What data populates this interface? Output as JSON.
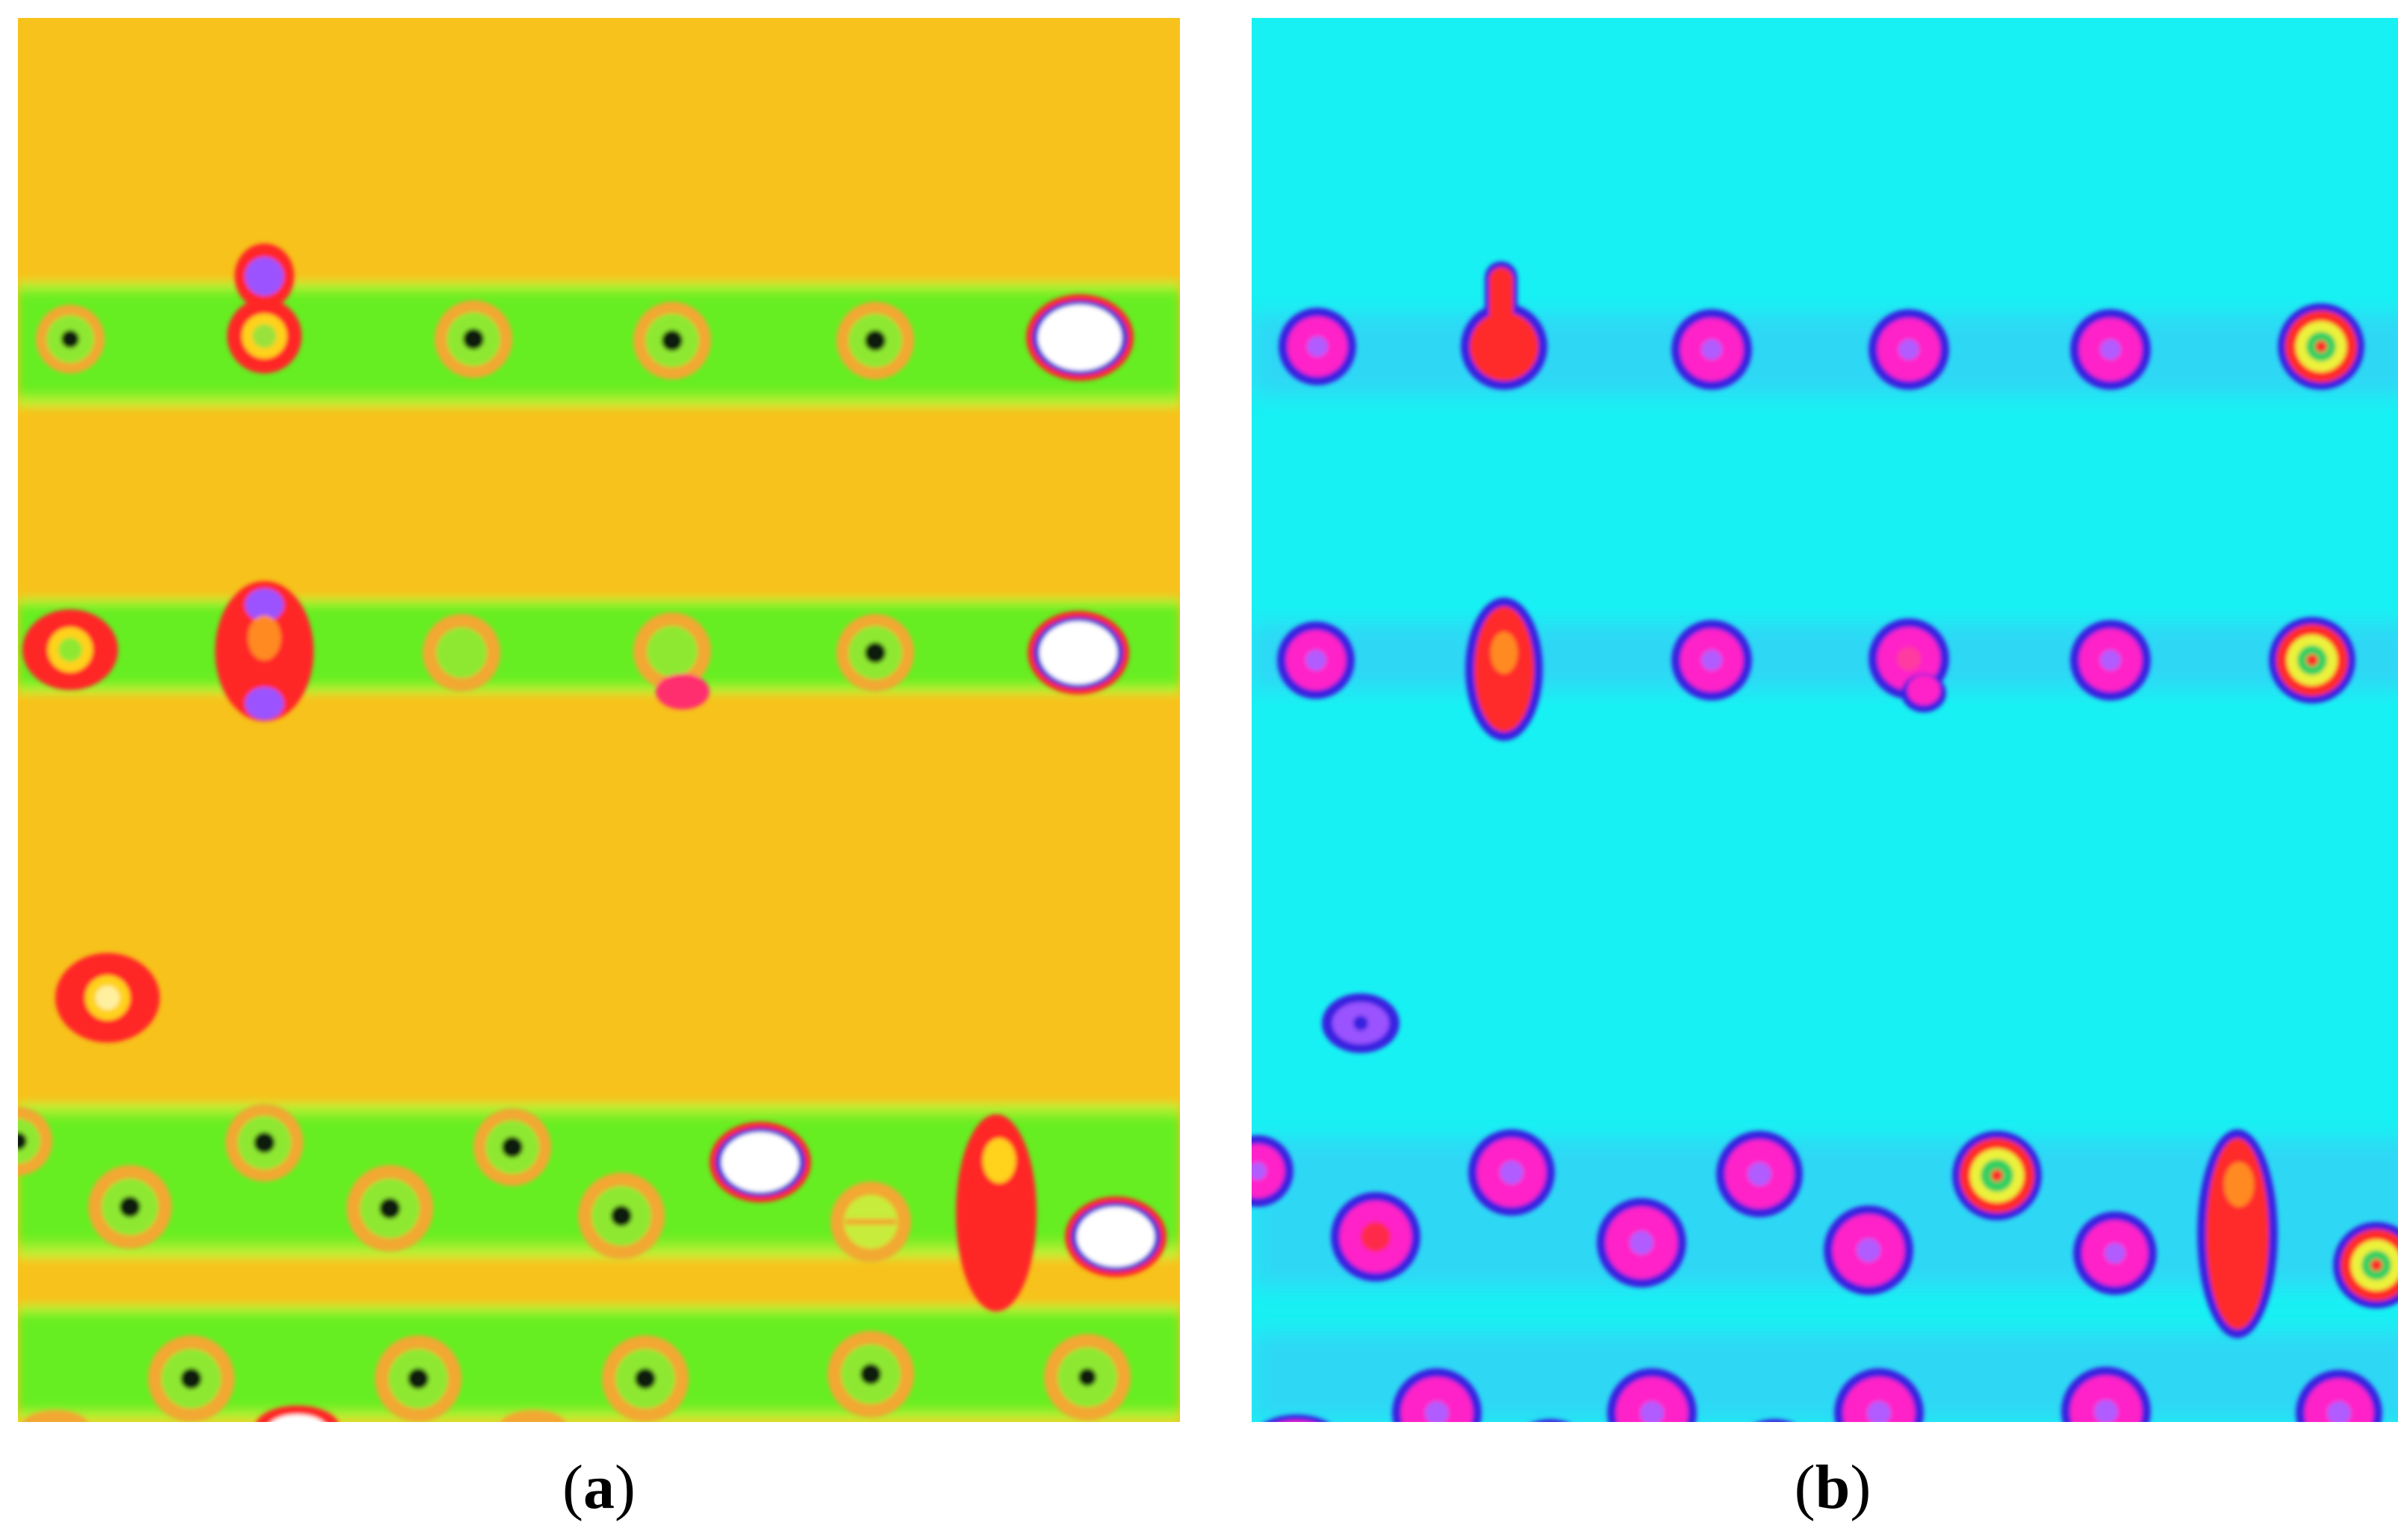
{
  "panels": [
    {
      "id": "a",
      "caption": {
        "open": "(",
        "letter": "a",
        "close": ")"
      },
      "colors": {
        "background": "#f7c21b",
        "band": "#66ee22",
        "band_edge": "#dcef3a",
        "ring": "#f2a830",
        "spot_core": "#0a1a0a",
        "hot": "#ff2626",
        "hotter": "#ffffff",
        "purple": "#9a52ff"
      }
    },
    {
      "id": "b",
      "caption": {
        "open": "(",
        "letter": "b",
        "close": ")"
      },
      "colors": {
        "background": "#18f1f3",
        "band": "#2fd8f5",
        "ring": "#3820e0",
        "spot": "#ff22c8",
        "hot": "#ff2a2a",
        "hotter": "#ecf23a",
        "core": "#32d060"
      }
    }
  ]
}
